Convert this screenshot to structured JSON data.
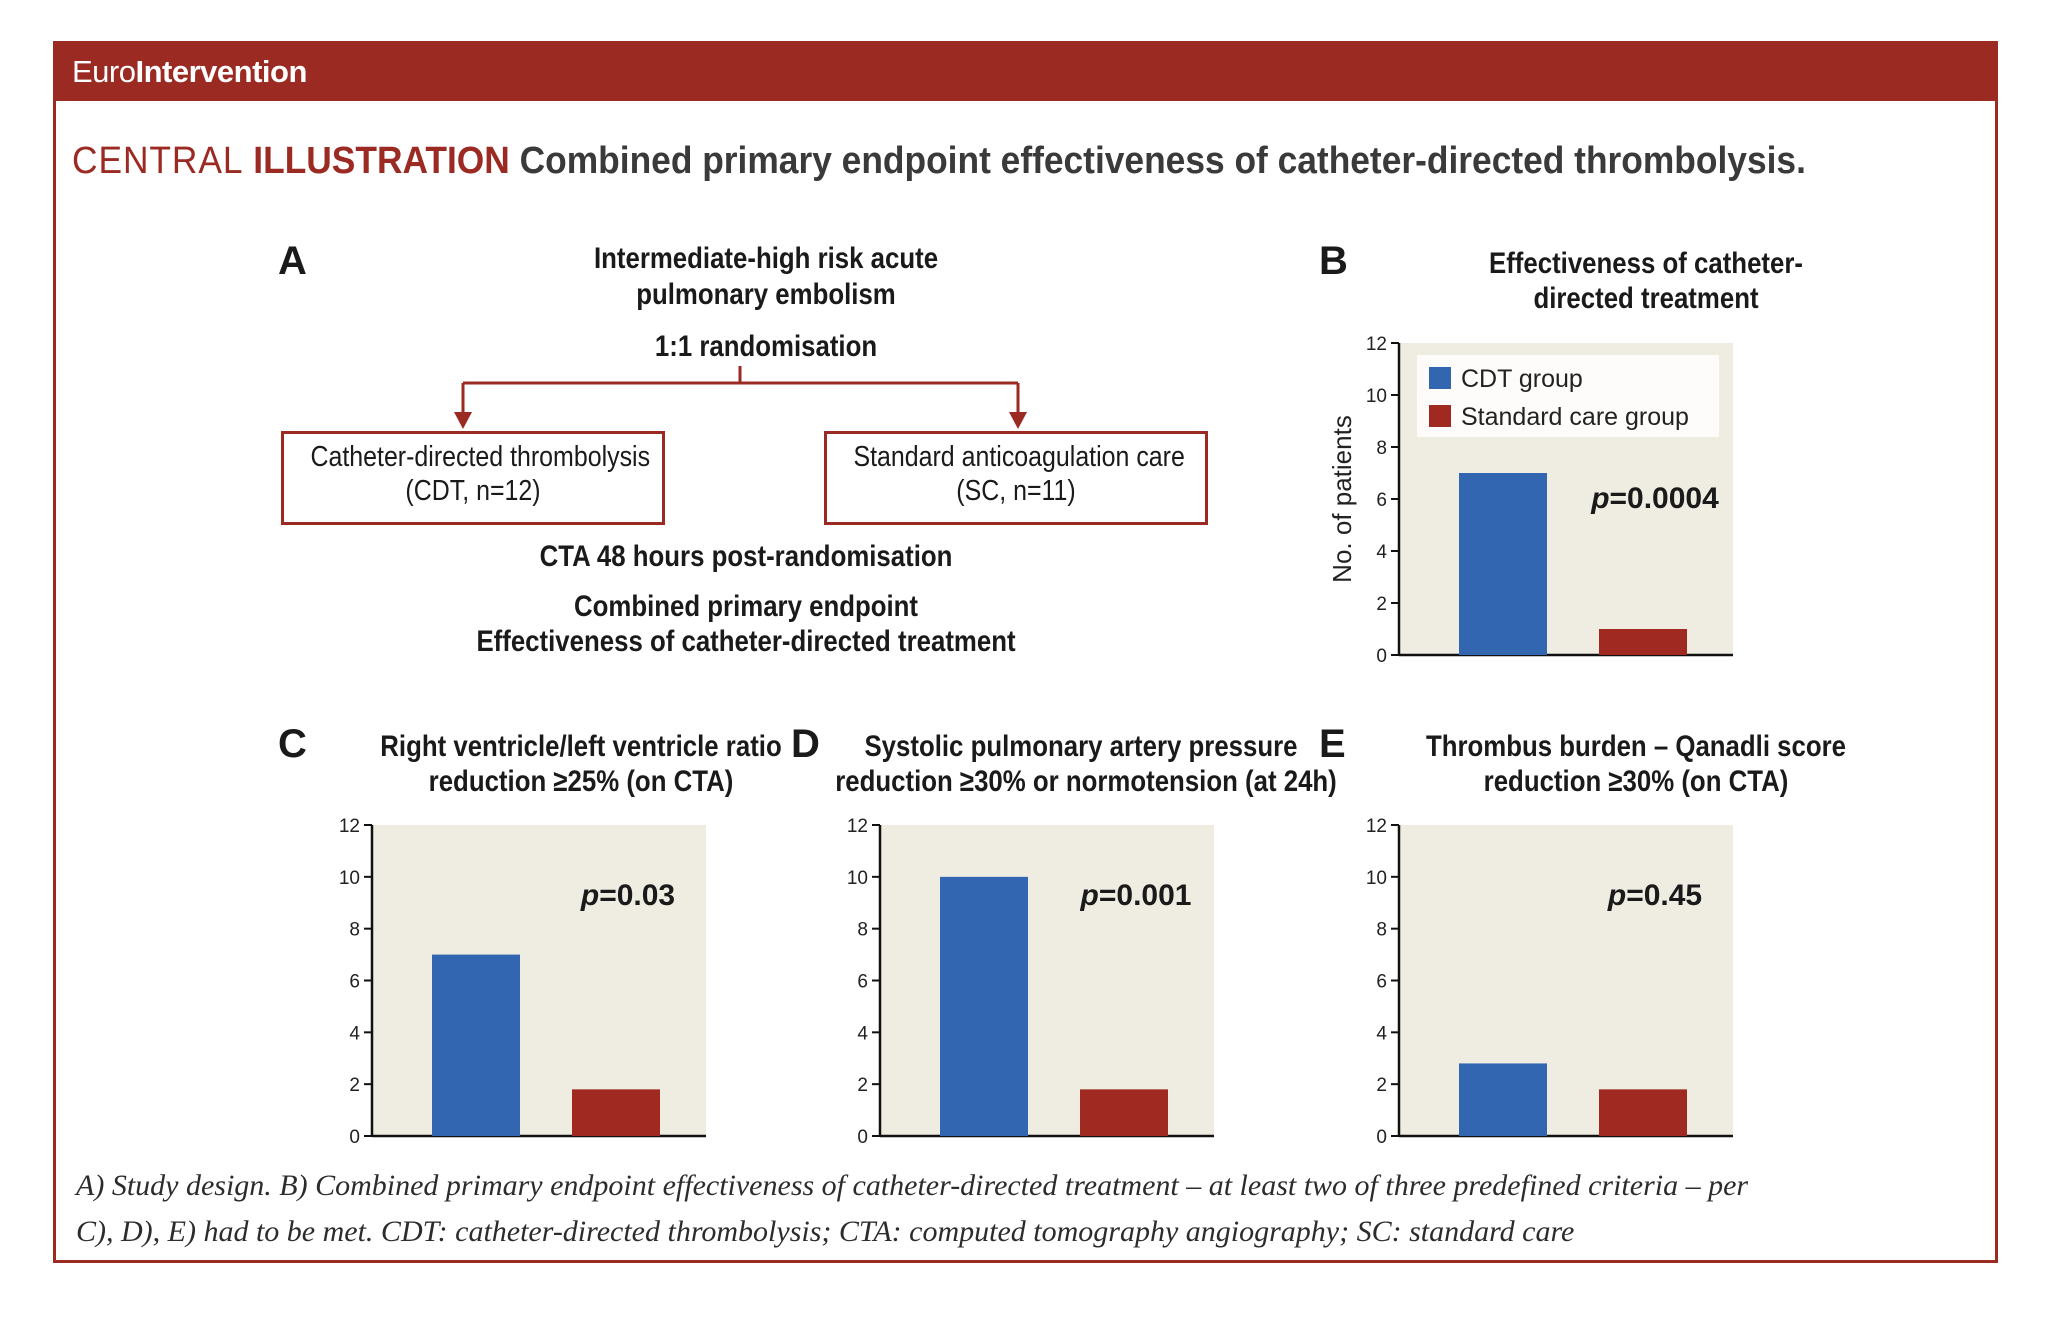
{
  "journal": {
    "prefix": "Euro",
    "bold": "Intervention"
  },
  "heading": {
    "word1": "CENTRAL",
    "word2": "ILLUSTRATION",
    "title": "Combined primary endpoint effectiveness of catheter-directed thrombolysis."
  },
  "panel_a": {
    "letter": "A",
    "title_line1": "Intermediate-high risk acute",
    "title_line2": "pulmonary embolism",
    "randomisation": "1:1 randomisation",
    "left_box_line1": "Catheter-directed thrombolysis",
    "left_box_line2": "(CDT, n=12)",
    "right_box_line1": "Standard anticoagulation care",
    "right_box_line2": "(SC, n=11)",
    "cta": "CTA 48 hours post-randomisation",
    "endpoint_line1": "Combined primary endpoint",
    "endpoint_line2": "Effectiveness of catheter-directed treatment",
    "colors": {
      "accent": "#9b2a23"
    }
  },
  "panel_b": {
    "letter": "B"
  },
  "panel_c": {
    "letter": "C"
  },
  "panel_d": {
    "letter": "D"
  },
  "panel_e": {
    "letter": "E"
  },
  "chart_data": [
    {
      "id": "B",
      "type": "bar",
      "title_line1": "Effectiveness of catheter-",
      "title_line2": "directed treatment",
      "ylabel": "No. of patients",
      "categories": [
        "CDT group",
        "Standard care group"
      ],
      "values": [
        7,
        1
      ],
      "ylim": [
        0,
        12
      ],
      "yticks": [
        "0",
        "2",
        "4",
        "6",
        "8",
        "10",
        "12"
      ],
      "p_label": "p",
      "p_value": "=0.0004",
      "legend": [
        "CDT group",
        "Standard care group"
      ],
      "legend_position": "top-right",
      "colors": [
        "#3366b0",
        "#a02a22"
      ],
      "background": "#efece1"
    },
    {
      "id": "C",
      "type": "bar",
      "title_line1": "Right ventricle/left ventricle ratio",
      "title_line2": "reduction ≥25% (on CTA)",
      "categories": [
        "CDT group",
        "Standard care group"
      ],
      "values": [
        7,
        1.8
      ],
      "ylim": [
        0,
        12
      ],
      "yticks": [
        "0",
        "2",
        "4",
        "6",
        "8",
        "10",
        "12"
      ],
      "p_label": "p",
      "p_value": "=0.03",
      "colors": [
        "#3366b0",
        "#a02a22"
      ],
      "background": "#efece1"
    },
    {
      "id": "D",
      "type": "bar",
      "title_line1": "Systolic pulmonary artery pressure",
      "title_line2": "reduction ≥30% or normotension (at 24h)",
      "categories": [
        "CDT group",
        "Standard care group"
      ],
      "values": [
        10,
        1.8
      ],
      "ylim": [
        0,
        12
      ],
      "yticks": [
        "0",
        "2",
        "4",
        "6",
        "8",
        "10",
        "12"
      ],
      "p_label": "p",
      "p_value": "=0.001",
      "colors": [
        "#3366b0",
        "#a02a22"
      ],
      "background": "#efece1"
    },
    {
      "id": "E",
      "type": "bar",
      "title_line1": "Thrombus burden – Qanadli score",
      "title_line2": "reduction ≥30% (on CTA)",
      "categories": [
        "CDT group",
        "Standard care group"
      ],
      "values": [
        2.8,
        1.8
      ],
      "ylim": [
        0,
        12
      ],
      "yticks": [
        "0",
        "2",
        "4",
        "6",
        "8",
        "10",
        "12"
      ],
      "p_label": "p",
      "p_value": "=0.45",
      "colors": [
        "#3366b0",
        "#a02a22"
      ],
      "background": "#efece1"
    }
  ],
  "caption_line1": "A) Study design. B) Combined primary endpoint effectiveness of catheter-directed treatment – at least two of three predefined criteria – per",
  "caption_line2": "C), D), E) had to be met. CDT: catheter-directed thrombolysis; CTA: computed tomography angiography; SC: standard care"
}
